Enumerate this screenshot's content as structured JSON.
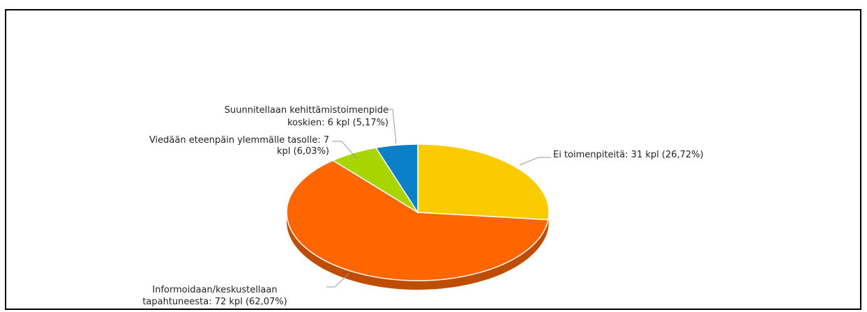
{
  "chart_data": {
    "type": "pie",
    "values": [
      31,
      72,
      7,
      6
    ],
    "value_labels": [
      [
        "Ei toimenpiteitä: 31 kpl (26,72%)"
      ],
      [
        "Informoidaan/keskustellaan",
        "tapahtuneesta: 72 kpl (62,07%)"
      ],
      [
        "Viedään eteenpäin ylemmälle tasolle: 7",
        "kpl (6,03%)"
      ],
      [
        "Suunnitellaan kehittämistoimenpide",
        "koskien: 6 kpl (5,17%)"
      ]
    ],
    "colors": [
      "#f9cb00",
      "#ff6600",
      "#a8d400",
      "#0b7fc8"
    ]
  }
}
